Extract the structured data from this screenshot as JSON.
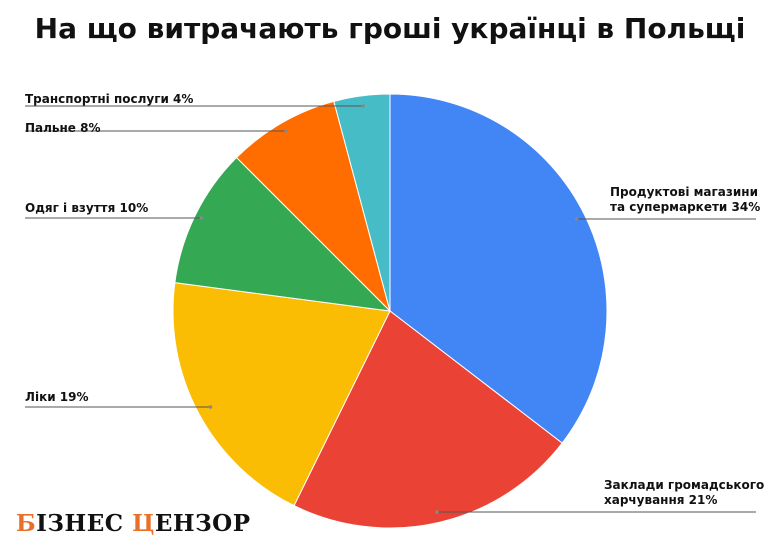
{
  "chart_data": {
    "type": "pie",
    "title": "На що витрачають гроші українці в Польщі",
    "slices": [
      {
        "lines": [
          "Продуктові магазини",
          "та супермаркети 34%"
        ],
        "value": 34,
        "color": "#4285f4"
      },
      {
        "lines": [
          "Заклади громадського",
          "харчування 21%"
        ],
        "value": 21,
        "color": "#ea4335"
      },
      {
        "lines": [
          "Ліки 19%"
        ],
        "value": 19,
        "color": "#fbbc04"
      },
      {
        "lines": [
          "Одяг і взуття 10%"
        ],
        "value": 10,
        "color": "#34a853"
      },
      {
        "lines": [
          "Пальне 8%"
        ],
        "value": 8,
        "color": "#ff6d01"
      },
      {
        "lines": [
          "Транспортні послуги 4%"
        ],
        "value": 4,
        "color": "#46bdc6"
      }
    ]
  },
  "logo": {
    "p1_accent": "Б",
    "p1_rest": "ІЗНЕС ",
    "p2_accent": "Ц",
    "p2_rest": "ЕНЗОР"
  }
}
